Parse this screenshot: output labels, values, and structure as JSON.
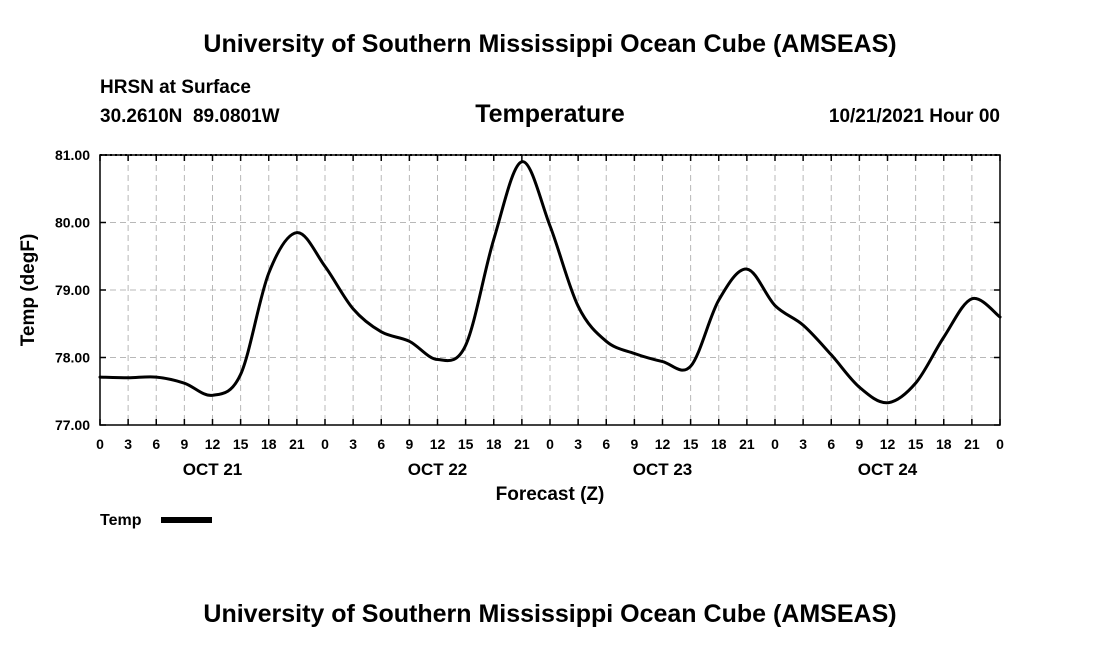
{
  "header": {
    "top_title": "University of Southern Mississippi Ocean Cube (AMSEAS)",
    "bottom_title": "University of Southern Mississippi Ocean Cube (AMSEAS)",
    "station": "HRSN at Surface",
    "coords": "30.2610N  89.0801W",
    "date": "10/21/2021 Hour 00"
  },
  "chart_data": {
    "type": "line",
    "title": "Temperature",
    "xlabel": "Forecast (Z)",
    "ylabel": "Temp (degF)",
    "ylim": [
      77.0,
      81.0
    ],
    "xlim": [
      0,
      96
    ],
    "y_ticks": [
      "77.00",
      "78.00",
      "79.00",
      "80.00",
      "81.00"
    ],
    "y_tick_values": [
      77,
      78,
      79,
      80,
      81
    ],
    "x_tick_labels": [
      "0",
      "3",
      "6",
      "9",
      "12",
      "15",
      "18",
      "21",
      "0",
      "3",
      "6",
      "9",
      "12",
      "15",
      "18",
      "21",
      "0",
      "3",
      "6",
      "9",
      "12",
      "15",
      "18",
      "21",
      "0",
      "3",
      "6",
      "9",
      "12",
      "15",
      "18",
      "21",
      "0"
    ],
    "day_labels": [
      {
        "label": "OCT 21",
        "hour": 12
      },
      {
        "label": "OCT 22",
        "hour": 36
      },
      {
        "label": "OCT 23",
        "hour": 60
      },
      {
        "label": "OCT 24",
        "hour": 84
      }
    ],
    "grid": true,
    "legend": "bottom-left",
    "series": [
      {
        "name": "Temp",
        "color": "#000000",
        "x": [
          0,
          3,
          6,
          9,
          12,
          15,
          18,
          21,
          24,
          27,
          30,
          33,
          36,
          39,
          42,
          45,
          48,
          51,
          54,
          57,
          60,
          63,
          66,
          69,
          72,
          75,
          78,
          81,
          84,
          87,
          90,
          93,
          96
        ],
        "values": [
          77.71,
          77.7,
          77.71,
          77.62,
          77.44,
          77.75,
          79.25,
          79.85,
          79.35,
          78.72,
          78.38,
          78.24,
          77.97,
          78.18,
          79.75,
          80.9,
          79.95,
          78.76,
          78.24,
          78.06,
          77.94,
          77.87,
          78.85,
          79.31,
          78.77,
          78.48,
          78.04,
          77.56,
          77.33,
          77.62,
          78.3,
          78.87,
          78.6
        ]
      }
    ]
  }
}
